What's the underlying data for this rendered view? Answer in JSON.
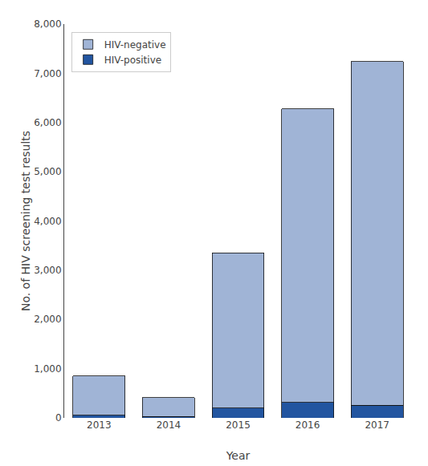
{
  "chart_data": {
    "type": "bar",
    "stacked": true,
    "categories": [
      "2013",
      "2014",
      "2015",
      "2016",
      "2017"
    ],
    "series": [
      {
        "name": "HIV-positive",
        "color": "#2255a0",
        "values": [
          50,
          25,
          200,
          310,
          260
        ]
      },
      {
        "name": "HIV-negative",
        "color": "#a0b4d6",
        "values": [
          800,
          390,
          3150,
          5970,
          6980
        ]
      }
    ],
    "xlabel": "Year",
    "ylabel": "No. of HIV screening test results",
    "ylim": [
      0,
      8000
    ],
    "yticks": [
      0,
      {
        "value": 1000,
        "label": "1,000"
      },
      {
        "value": 2000,
        "label": "2,000"
      },
      {
        "value": 3000,
        "label": "3,000"
      },
      {
        "value": 4000,
        "label": "4,000"
      },
      {
        "value": 5000,
        "label": "5,000"
      },
      {
        "value": 6000,
        "label": "6,000"
      },
      {
        "value": 7000,
        "label": "7,000"
      },
      {
        "value": 8000,
        "label": "8,000"
      }
    ],
    "grid": false,
    "legend": "upper left"
  }
}
